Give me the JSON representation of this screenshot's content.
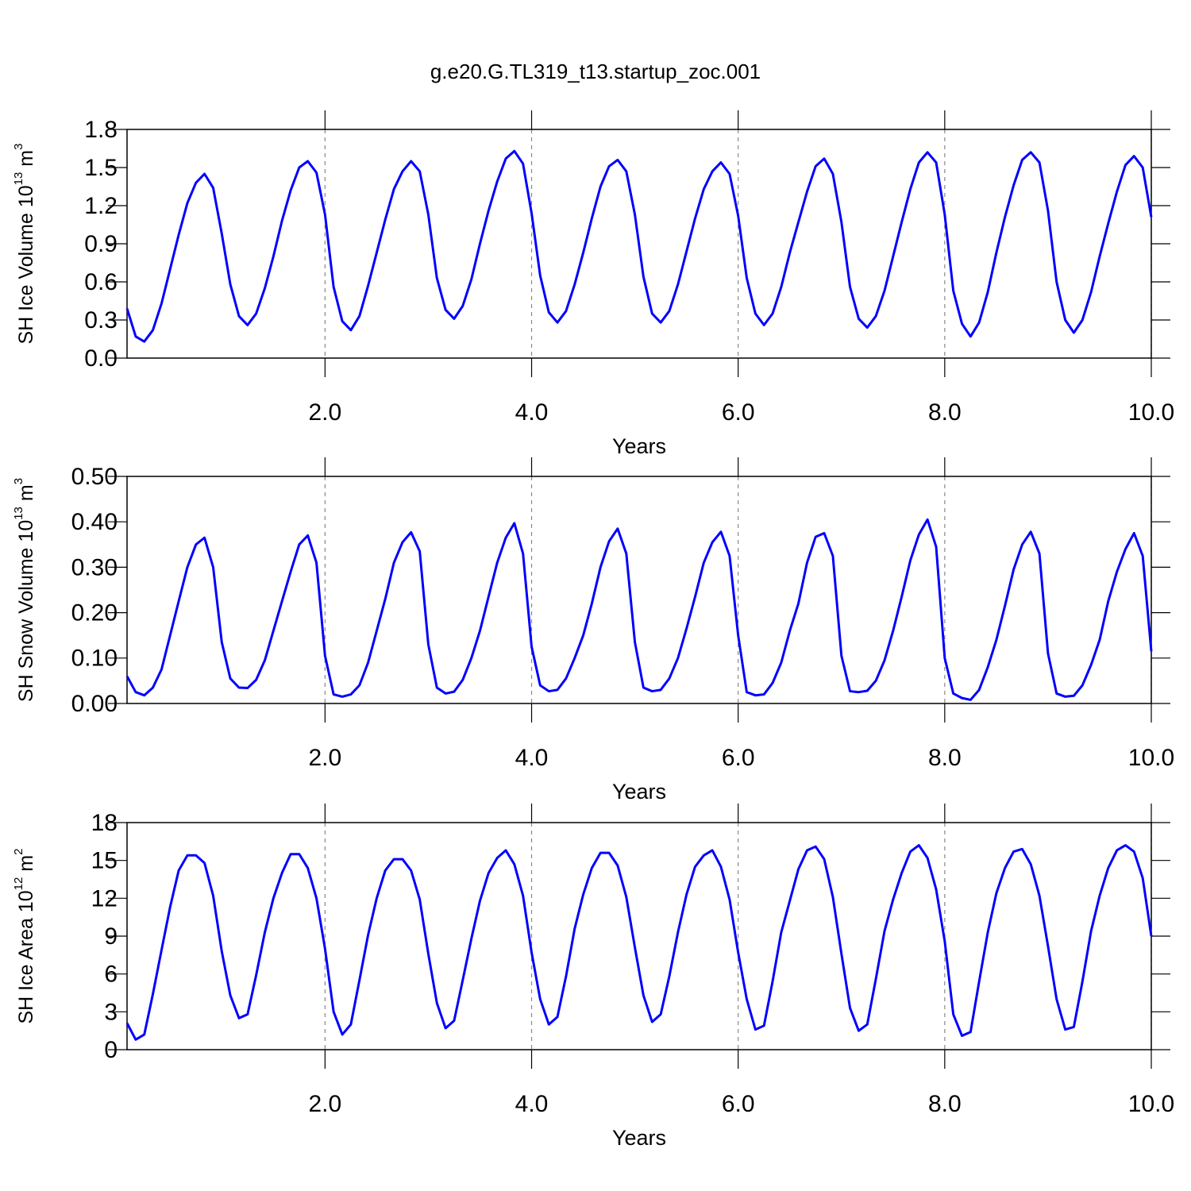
{
  "chart_data": [
    {
      "type": "line",
      "title": "g.e20.G.TL319_t13.startup_zoc.001",
      "xlabel": "Years",
      "ylabel": {
        "text": "SH Ice Volume 10",
        "exp": "13",
        "unit": "m",
        "unit_exp": "3"
      },
      "xlim": [
        0.083,
        10
      ],
      "xticks": [
        {
          "value": 2,
          "label": "2.0"
        },
        {
          "value": 4,
          "label": "4.0"
        },
        {
          "value": 6,
          "label": "6.0"
        },
        {
          "value": 8,
          "label": "8.0"
        },
        {
          "value": 10,
          "label": "10.0"
        }
      ],
      "ylim": [
        0,
        1.8
      ],
      "yticks": [
        {
          "value": 0,
          "label": "0.0"
        },
        0.3,
        0.6,
        0.9,
        1.2,
        1.5,
        1.8
      ],
      "grid": true,
      "x": [
        0.083,
        0.167,
        0.25,
        0.333,
        0.417,
        0.5,
        0.583,
        0.667,
        0.75,
        0.833,
        0.917,
        1.0,
        1.083,
        1.167,
        1.25,
        1.333,
        1.417,
        1.5,
        1.583,
        1.667,
        1.75,
        1.833,
        1.917,
        2.0,
        2.083,
        2.167,
        2.25,
        2.333,
        2.417,
        2.5,
        2.583,
        2.667,
        2.75,
        2.833,
        2.917,
        3.0,
        3.083,
        3.167,
        3.25,
        3.333,
        3.417,
        3.5,
        3.583,
        3.667,
        3.75,
        3.833,
        3.917,
        4.0,
        4.083,
        4.167,
        4.25,
        4.333,
        4.417,
        4.5,
        4.583,
        4.667,
        4.75,
        4.833,
        4.917,
        5.0,
        5.083,
        5.167,
        5.25,
        5.333,
        5.417,
        5.5,
        5.583,
        5.667,
        5.75,
        5.833,
        5.917,
        6.0,
        6.083,
        6.167,
        6.25,
        6.333,
        6.417,
        6.5,
        6.583,
        6.667,
        6.75,
        6.833,
        6.917,
        7.0,
        7.083,
        7.167,
        7.25,
        7.333,
        7.417,
        7.5,
        7.583,
        7.667,
        7.75,
        7.833,
        7.917,
        8.0,
        8.083,
        8.167,
        8.25,
        8.333,
        8.417,
        8.5,
        8.583,
        8.667,
        8.75,
        8.833,
        8.917,
        9.0,
        9.083,
        9.167,
        9.25,
        9.333,
        9.417,
        9.5,
        9.583,
        9.667,
        9.75,
        9.833,
        9.917,
        10.0
      ],
      "series": [
        {
          "color": "#0000ff",
          "values": [
            0.39,
            0.17,
            0.13,
            0.22,
            0.43,
            0.7,
            0.97,
            1.22,
            1.38,
            1.45,
            1.34,
            0.98,
            0.58,
            0.33,
            0.26,
            0.35,
            0.55,
            0.8,
            1.08,
            1.32,
            1.5,
            1.55,
            1.46,
            1.13,
            0.56,
            0.29,
            0.22,
            0.33,
            0.57,
            0.83,
            1.09,
            1.33,
            1.47,
            1.55,
            1.47,
            1.13,
            0.63,
            0.38,
            0.31,
            0.41,
            0.62,
            0.9,
            1.16,
            1.39,
            1.57,
            1.63,
            1.53,
            1.14,
            0.65,
            0.36,
            0.28,
            0.37,
            0.58,
            0.83,
            1.1,
            1.35,
            1.51,
            1.56,
            1.47,
            1.13,
            0.64,
            0.35,
            0.28,
            0.37,
            0.58,
            0.84,
            1.1,
            1.33,
            1.47,
            1.54,
            1.45,
            1.12,
            0.63,
            0.35,
            0.26,
            0.35,
            0.56,
            0.83,
            1.07,
            1.31,
            1.51,
            1.57,
            1.45,
            1.07,
            0.56,
            0.31,
            0.24,
            0.33,
            0.53,
            0.8,
            1.07,
            1.33,
            1.54,
            1.62,
            1.54,
            1.13,
            0.53,
            0.27,
            0.17,
            0.28,
            0.52,
            0.83,
            1.11,
            1.36,
            1.56,
            1.62,
            1.54,
            1.16,
            0.6,
            0.3,
            0.2,
            0.3,
            0.52,
            0.8,
            1.06,
            1.31,
            1.52,
            1.59,
            1.5,
            1.11
          ]
        }
      ]
    },
    {
      "type": "line",
      "xlabel": "Years",
      "ylabel": {
        "text": "SH Snow Volume 10",
        "exp": "13",
        "unit": "m",
        "unit_exp": "3"
      },
      "xlim": [
        0.083,
        10
      ],
      "xticks": [
        {
          "value": 2,
          "label": "2.0"
        },
        {
          "value": 4,
          "label": "4.0"
        },
        {
          "value": 6,
          "label": "6.0"
        },
        {
          "value": 8,
          "label": "8.0"
        },
        {
          "value": 10,
          "label": "10.0"
        }
      ],
      "ylim": [
        0,
        0.5
      ],
      "yticks": [
        {
          "value": 0,
          "label": "0.00"
        },
        {
          "value": 0.1,
          "label": "0.10"
        },
        {
          "value": 0.2,
          "label": "0.20"
        },
        {
          "value": 0.3,
          "label": "0.30"
        },
        {
          "value": 0.4,
          "label": "0.40"
        },
        {
          "value": 0.5,
          "label": "0.50"
        }
      ],
      "grid": true,
      "x": [
        0.083,
        0.167,
        0.25,
        0.333,
        0.417,
        0.5,
        0.583,
        0.667,
        0.75,
        0.833,
        0.917,
        1.0,
        1.083,
        1.167,
        1.25,
        1.333,
        1.417,
        1.5,
        1.583,
        1.667,
        1.75,
        1.833,
        1.917,
        2.0,
        2.083,
        2.167,
        2.25,
        2.333,
        2.417,
        2.5,
        2.583,
        2.667,
        2.75,
        2.833,
        2.917,
        3.0,
        3.083,
        3.167,
        3.25,
        3.333,
        3.417,
        3.5,
        3.583,
        3.667,
        3.75,
        3.833,
        3.917,
        4.0,
        4.083,
        4.167,
        4.25,
        4.333,
        4.417,
        4.5,
        4.583,
        4.667,
        4.75,
        4.833,
        4.917,
        5.0,
        5.083,
        5.167,
        5.25,
        5.333,
        5.417,
        5.5,
        5.583,
        5.667,
        5.75,
        5.833,
        5.917,
        6.0,
        6.083,
        6.167,
        6.25,
        6.333,
        6.417,
        6.5,
        6.583,
        6.667,
        6.75,
        6.833,
        6.917,
        7.0,
        7.083,
        7.167,
        7.25,
        7.333,
        7.417,
        7.5,
        7.583,
        7.667,
        7.75,
        7.833,
        7.917,
        8.0,
        8.083,
        8.167,
        8.25,
        8.333,
        8.417,
        8.5,
        8.583,
        8.667,
        8.75,
        8.833,
        8.917,
        9.0,
        9.083,
        9.167,
        9.25,
        9.333,
        9.417,
        9.5,
        9.583,
        9.667,
        9.75,
        9.833,
        9.917,
        10.0
      ],
      "series": [
        {
          "color": "#0000ff",
          "values": [
            0.06,
            0.025,
            0.018,
            0.035,
            0.075,
            0.15,
            0.225,
            0.3,
            0.35,
            0.365,
            0.3,
            0.135,
            0.055,
            0.035,
            0.034,
            0.052,
            0.095,
            0.16,
            0.225,
            0.29,
            0.35,
            0.37,
            0.31,
            0.105,
            0.02,
            0.015,
            0.02,
            0.04,
            0.09,
            0.16,
            0.23,
            0.31,
            0.355,
            0.377,
            0.335,
            0.13,
            0.035,
            0.022,
            0.026,
            0.052,
            0.1,
            0.16,
            0.235,
            0.31,
            0.365,
            0.397,
            0.33,
            0.125,
            0.04,
            0.027,
            0.03,
            0.055,
            0.1,
            0.15,
            0.22,
            0.3,
            0.357,
            0.385,
            0.33,
            0.135,
            0.035,
            0.027,
            0.03,
            0.055,
            0.1,
            0.165,
            0.235,
            0.31,
            0.355,
            0.378,
            0.325,
            0.15,
            0.025,
            0.018,
            0.02,
            0.045,
            0.09,
            0.16,
            0.22,
            0.31,
            0.367,
            0.375,
            0.325,
            0.105,
            0.027,
            0.025,
            0.028,
            0.05,
            0.095,
            0.16,
            0.235,
            0.315,
            0.372,
            0.405,
            0.345,
            0.1,
            0.022,
            0.012,
            0.008,
            0.03,
            0.08,
            0.14,
            0.215,
            0.295,
            0.35,
            0.378,
            0.33,
            0.11,
            0.022,
            0.015,
            0.017,
            0.04,
            0.085,
            0.14,
            0.225,
            0.29,
            0.34,
            0.375,
            0.325,
            0.115
          ]
        }
      ]
    },
    {
      "type": "line",
      "xlabel": "Years",
      "ylabel": {
        "text": "SH Ice Area 10",
        "exp": "12",
        "unit": "m",
        "unit_exp": "2"
      },
      "xlim": [
        0.083,
        10
      ],
      "xticks": [
        {
          "value": 2,
          "label": "2.0"
        },
        {
          "value": 4,
          "label": "4.0"
        },
        {
          "value": 6,
          "label": "6.0"
        },
        {
          "value": 8,
          "label": "8.0"
        },
        {
          "value": 10,
          "label": "10.0"
        }
      ],
      "ylim": [
        0,
        18
      ],
      "yticks": [
        0,
        3,
        6,
        9,
        12,
        15,
        18
      ],
      "grid": true,
      "x": [
        0.083,
        0.167,
        0.25,
        0.333,
        0.417,
        0.5,
        0.583,
        0.667,
        0.75,
        0.833,
        0.917,
        1.0,
        1.083,
        1.167,
        1.25,
        1.333,
        1.417,
        1.5,
        1.583,
        1.667,
        1.75,
        1.833,
        1.917,
        2.0,
        2.083,
        2.167,
        2.25,
        2.333,
        2.417,
        2.5,
        2.583,
        2.667,
        2.75,
        2.833,
        2.917,
        3.0,
        3.083,
        3.167,
        3.25,
        3.333,
        3.417,
        3.5,
        3.583,
        3.667,
        3.75,
        3.833,
        3.917,
        4.0,
        4.083,
        4.167,
        4.25,
        4.333,
        4.417,
        4.5,
        4.583,
        4.667,
        4.75,
        4.833,
        4.917,
        5.0,
        5.083,
        5.167,
        5.25,
        5.333,
        5.417,
        5.5,
        5.583,
        5.667,
        5.75,
        5.833,
        5.917,
        6.0,
        6.083,
        6.167,
        6.25,
        6.333,
        6.417,
        6.5,
        6.583,
        6.667,
        6.75,
        6.833,
        6.917,
        7.0,
        7.083,
        7.167,
        7.25,
        7.333,
        7.417,
        7.5,
        7.583,
        7.667,
        7.75,
        7.833,
        7.917,
        8.0,
        8.083,
        8.167,
        8.25,
        8.333,
        8.417,
        8.5,
        8.583,
        8.667,
        8.75,
        8.833,
        8.917,
        9.0,
        9.083,
        9.167,
        9.25,
        9.333,
        9.417,
        9.5,
        9.583,
        9.667,
        9.75,
        9.833,
        9.917,
        10.0
      ],
      "series": [
        {
          "color": "#0000ff",
          "values": [
            2.1,
            0.8,
            1.2,
            4.4,
            7.9,
            11.3,
            14.2,
            15.4,
            15.4,
            14.8,
            12.2,
            7.8,
            4.3,
            2.5,
            2.8,
            5.9,
            9.3,
            12.0,
            14.0,
            15.5,
            15.5,
            14.4,
            12.0,
            8.0,
            3.0,
            1.2,
            2.0,
            5.5,
            9.1,
            12.0,
            14.2,
            15.1,
            15.1,
            14.2,
            11.9,
            7.6,
            3.7,
            1.7,
            2.3,
            5.5,
            8.8,
            11.8,
            14.0,
            15.2,
            15.8,
            14.7,
            12.2,
            7.7,
            4.0,
            2.0,
            2.6,
            5.8,
            9.6,
            12.3,
            14.4,
            15.6,
            15.6,
            14.6,
            12.1,
            8.1,
            4.3,
            2.2,
            2.8,
            5.8,
            9.3,
            12.3,
            14.5,
            15.4,
            15.8,
            14.5,
            11.9,
            7.7,
            4.0,
            1.6,
            1.9,
            5.4,
            9.3,
            11.8,
            14.3,
            15.8,
            16.1,
            15.1,
            12.1,
            7.6,
            3.3,
            1.5,
            2.0,
            5.6,
            9.4,
            11.9,
            14.0,
            15.7,
            16.2,
            15.2,
            12.7,
            8.6,
            2.8,
            1.1,
            1.4,
            5.4,
            9.3,
            12.4,
            14.4,
            15.7,
            15.9,
            14.7,
            12.2,
            8.2,
            4.0,
            1.6,
            1.8,
            5.4,
            9.4,
            12.2,
            14.4,
            15.8,
            16.2,
            15.7,
            13.6,
            9.0
          ]
        }
      ]
    }
  ]
}
